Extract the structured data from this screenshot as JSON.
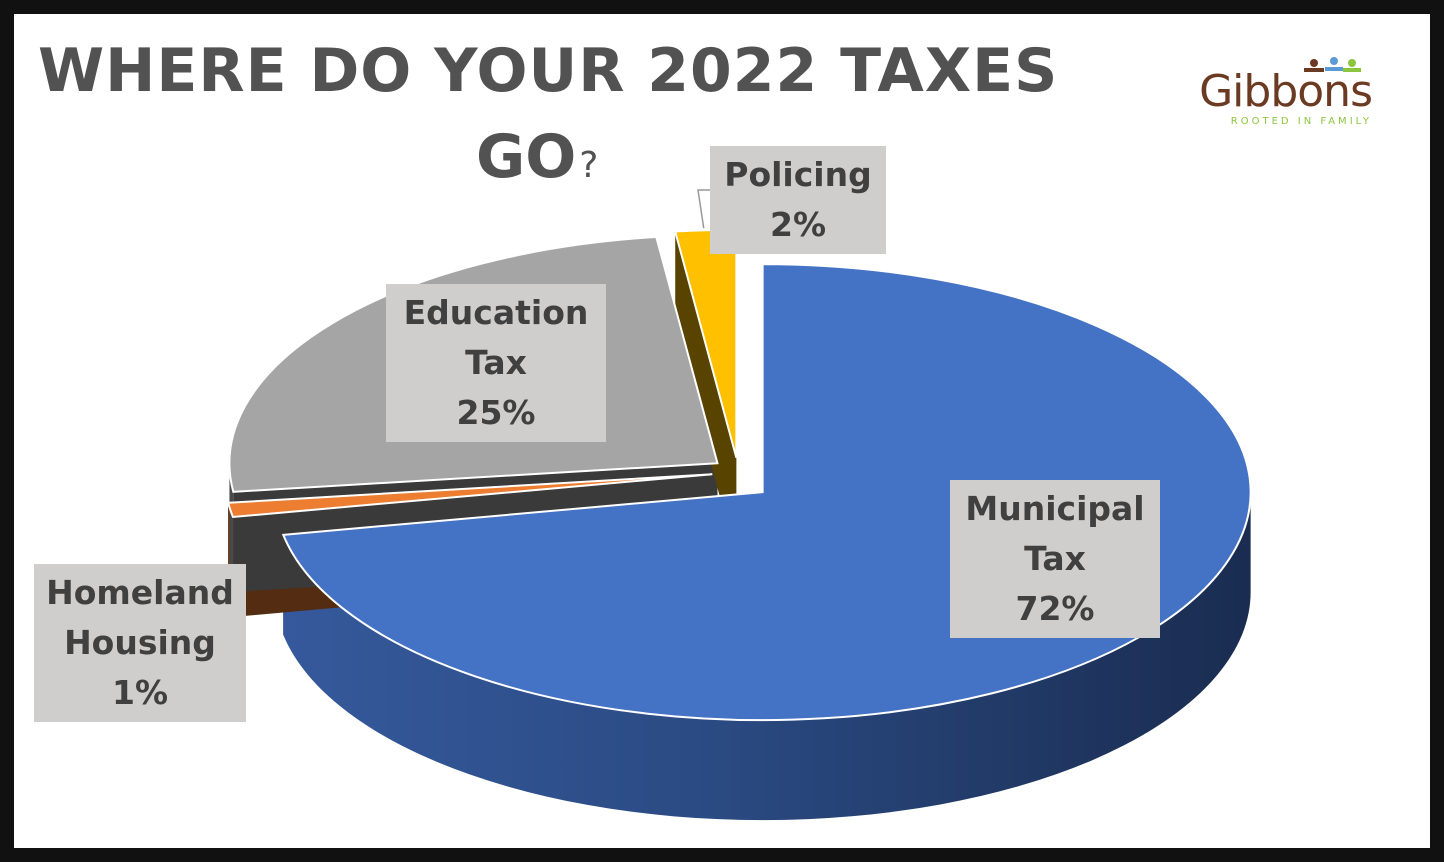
{
  "title": {
    "line1": "WHERE DO YOUR 2022 TAXES",
    "line2": "GO",
    "punct": "?"
  },
  "logo": {
    "word": "Gibbons",
    "tagline": "ROOTED IN FAMILY",
    "colors": {
      "word": "#6b3a22",
      "tagline": "#8cc63f",
      "figure1": "#5b9bd5",
      "figure2": "#8cc63f"
    }
  },
  "chart_data": {
    "type": "pie",
    "title": "WHERE DO YOUR 2022 TAXES GO?",
    "style": "3d-exploded",
    "slices": [
      {
        "name": "Municipal Tax",
        "label_lines": [
          "Municipal",
          "Tax"
        ],
        "value": 72,
        "value_label": "72%",
        "color": "#4472c4"
      },
      {
        "name": "Homeland Housing",
        "label_lines": [
          "Homeland",
          "Housing"
        ],
        "value": 1,
        "value_label": "1%",
        "color": "#ed7d31"
      },
      {
        "name": "Education Tax",
        "label_lines": [
          "Education",
          "Tax"
        ],
        "value": 25,
        "value_label": "25%",
        "color": "#a5a5a5"
      },
      {
        "name": "Policing",
        "label_lines": [
          "Policing"
        ],
        "value": 2,
        "value_label": "2%",
        "color": "#ffc000"
      }
    ]
  }
}
